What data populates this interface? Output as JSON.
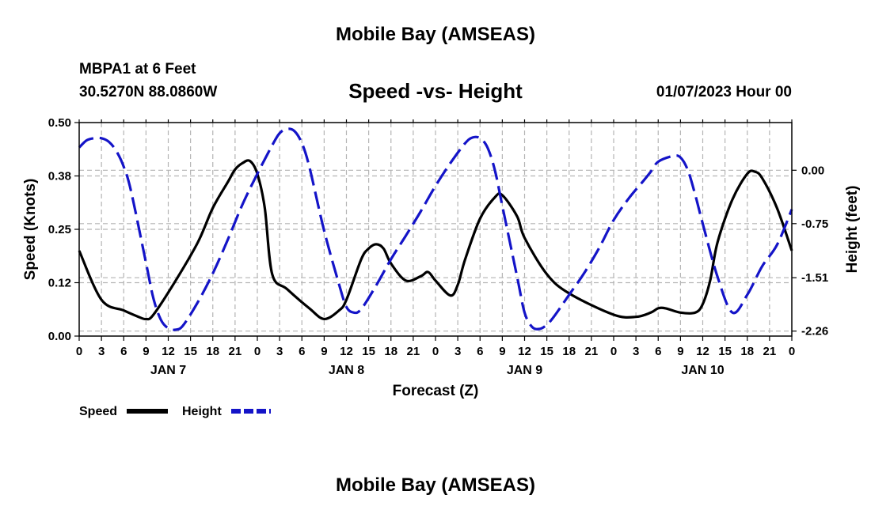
{
  "title": "Mobile Bay (AMSEAS)",
  "station": "MBPA1 at 6 Feet",
  "coords": "30.5270N  88.0860W",
  "subtitle": "Speed -vs- Height",
  "datetime": "01/07/2023 Hour 00",
  "footer_title": "Mobile Bay (AMSEAS)",
  "colors": {
    "speed": "#000000",
    "height": "#1414c8",
    "grid": "#b4b4b4"
  },
  "chart_data": {
    "type": "line",
    "title": "Speed -vs- Height",
    "xlabel": "Forecast (Z)",
    "ylabel_left": "Speed (Knots)",
    "ylabel_right": "Height (feet)",
    "x_range": [
      0,
      96
    ],
    "x_tick_labels": [
      "0",
      "3",
      "6",
      "9",
      "12",
      "15",
      "18",
      "21",
      "0",
      "3",
      "6",
      "9",
      "12",
      "15",
      "18",
      "21",
      "0",
      "3",
      "6",
      "9",
      "12",
      "15",
      "18",
      "21",
      "0",
      "3",
      "6",
      "9",
      "12",
      "15",
      "18",
      "21",
      "0"
    ],
    "day_labels": [
      {
        "hour": 12,
        "label": "JAN 7"
      },
      {
        "hour": 36,
        "label": "JAN 8"
      },
      {
        "hour": 60,
        "label": "JAN 9"
      },
      {
        "hour": 84,
        "label": "JAN 10"
      }
    ],
    "y_left_range": [
      0,
      0.5
    ],
    "y_left_ticks": [
      "0.00",
      "0.12",
      "0.25",
      "0.38",
      "0.50"
    ],
    "y_left_tick_values": [
      0,
      0.125,
      0.25,
      0.375,
      0.5
    ],
    "y_right_range": [
      -2.33,
      0.67
    ],
    "y_right_ticks": [
      "0.00",
      "-0.75",
      "-1.51",
      "-2.26"
    ],
    "y_right_tick_values": [
      0,
      -0.75,
      -1.51,
      -2.26
    ],
    "legend": [
      {
        "name": "Speed",
        "style": "solid"
      },
      {
        "name": "Height",
        "style": "dashed"
      }
    ],
    "series": [
      {
        "name": "Speed",
        "axis": "left",
        "x": [
          0,
          3,
          6,
          8,
          9,
          10,
          13,
          16,
          18,
          20,
          21,
          22,
          23,
          24,
          25,
          26,
          28,
          31,
          33,
          35,
          36,
          38,
          39,
          40,
          41,
          42,
          44,
          46,
          47,
          48,
          50,
          51,
          52,
          54,
          56,
          57,
          59,
          60,
          63,
          66,
          72,
          75,
          77,
          78,
          79,
          81,
          83,
          84,
          85,
          86,
          88,
          90,
          91,
          92,
          94,
          96
        ],
        "y": [
          0.2,
          0.085,
          0.06,
          0.045,
          0.04,
          0.05,
          0.13,
          0.22,
          0.3,
          0.36,
          0.39,
          0.405,
          0.41,
          0.38,
          0.3,
          0.145,
          0.11,
          0.065,
          0.04,
          0.06,
          0.085,
          0.18,
          0.205,
          0.215,
          0.205,
          0.17,
          0.13,
          0.14,
          0.15,
          0.13,
          0.095,
          0.12,
          0.18,
          0.275,
          0.325,
          0.33,
          0.28,
          0.23,
          0.145,
          0.1,
          0.05,
          0.045,
          0.055,
          0.065,
          0.065,
          0.055,
          0.055,
          0.075,
          0.13,
          0.22,
          0.32,
          0.38,
          0.385,
          0.37,
          0.3,
          0.2
        ]
      },
      {
        "name": "Height",
        "axis": "right",
        "x": [
          0,
          1,
          2,
          3,
          4,
          5,
          6,
          7,
          9,
          10,
          11,
          12,
          13,
          14,
          16,
          18,
          20,
          22,
          24,
          26,
          27,
          28,
          29,
          30,
          31,
          33,
          35,
          36,
          37,
          38,
          40,
          42,
          44,
          46,
          48,
          50,
          52,
          53,
          54,
          55,
          56,
          57,
          59,
          60,
          61,
          62,
          63,
          64,
          66,
          68,
          70,
          72,
          74,
          76,
          77,
          78,
          80,
          81,
          82,
          83,
          84,
          86,
          88,
          90,
          92,
          94,
          96
        ],
        "y": [
          0.32,
          0.42,
          0.45,
          0.45,
          0.4,
          0.27,
          0.05,
          -0.3,
          -1.3,
          -1.8,
          -2.1,
          -2.22,
          -2.24,
          -2.18,
          -1.85,
          -1.45,
          -0.98,
          -0.48,
          -0.05,
          0.35,
          0.52,
          0.58,
          0.55,
          0.38,
          0.05,
          -0.85,
          -1.6,
          -1.92,
          -2.0,
          -1.95,
          -1.62,
          -1.25,
          -0.92,
          -0.58,
          -0.22,
          0.1,
          0.38,
          0.46,
          0.45,
          0.32,
          0.0,
          -0.5,
          -1.5,
          -2.0,
          -2.2,
          -2.23,
          -2.17,
          -2.05,
          -1.75,
          -1.45,
          -1.1,
          -0.7,
          -0.4,
          -0.15,
          -0.02,
          0.12,
          0.2,
          0.18,
          0.0,
          -0.35,
          -0.75,
          -1.5,
          -2.0,
          -1.75,
          -1.35,
          -1.05,
          -0.55
        ]
      }
    ]
  }
}
